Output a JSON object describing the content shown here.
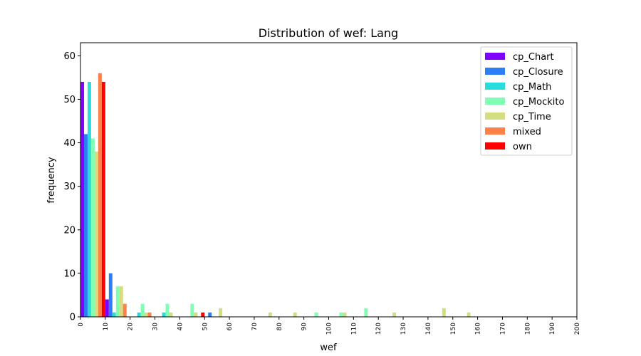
{
  "chart_data": {
    "type": "bar",
    "title": "Distribution of wef: Lang",
    "xlabel": "wef",
    "ylabel": "frequency",
    "xlim": [
      0,
      200
    ],
    "ylim": [
      0,
      63
    ],
    "xticks": [
      0,
      10,
      20,
      30,
      40,
      50,
      60,
      70,
      80,
      90,
      100,
      110,
      120,
      130,
      140,
      150,
      160,
      170,
      180,
      190,
      200
    ],
    "yticks": [
      0,
      10,
      20,
      30,
      40,
      50,
      60
    ],
    "bin_width": 10,
    "legend_position": "top-right",
    "grid": false,
    "series": [
      {
        "name": "cp_Chart",
        "color": "#8000ff",
        "bins": [
          0,
          10
        ],
        "values": [
          54,
          4
        ]
      },
      {
        "name": "cp_Closure",
        "color": "#2c7ef7",
        "bins": [
          0,
          10,
          50
        ],
        "values": [
          42,
          10,
          1
        ]
      },
      {
        "name": "cp_Math",
        "color": "#2adddd",
        "bins": [
          0,
          10,
          20,
          30
        ],
        "values": [
          54,
          1,
          1,
          1
        ]
      },
      {
        "name": "cp_Mockito",
        "color": "#80ffb4",
        "bins": [
          0,
          10,
          20,
          30,
          40,
          90,
          100,
          110
        ],
        "values": [
          41,
          7,
          3,
          3,
          3,
          1,
          1,
          2
        ]
      },
      {
        "name": "cp_Time",
        "color": "#d4dd80",
        "bins": [
          0,
          10,
          20,
          30,
          40,
          50,
          70,
          80,
          100,
          120,
          140,
          150
        ],
        "values": [
          38,
          7,
          1,
          1,
          1,
          2,
          1,
          1,
          1,
          1,
          2,
          1
        ]
      },
      {
        "name": "mixed",
        "color": "#ff8147",
        "bins": [
          0,
          10,
          20
        ],
        "values": [
          56,
          3,
          1
        ]
      },
      {
        "name": "own",
        "color": "#ff0000",
        "bins": [
          0,
          40
        ],
        "values": [
          54,
          1
        ]
      }
    ]
  }
}
